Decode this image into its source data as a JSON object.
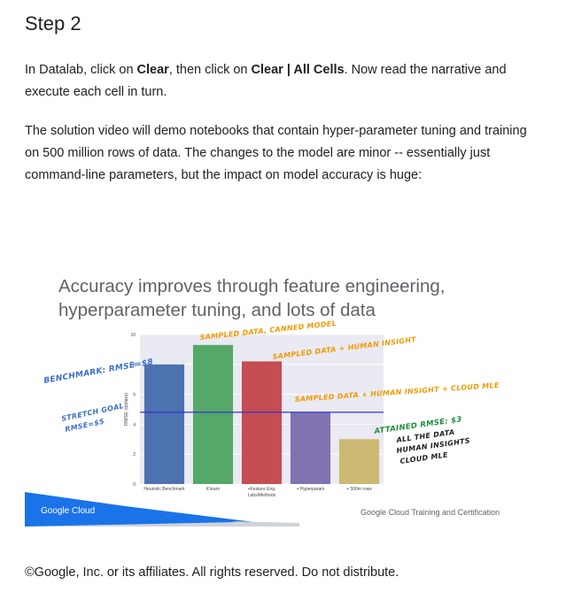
{
  "heading": "Step 2",
  "paragraph1": {
    "t1": "In Datalab, click on ",
    "b1": "Clear",
    "t2": ", then click on ",
    "b2": "Clear | All Cells",
    "t3": ". Now read the narrative and execute each cell in turn."
  },
  "paragraph2": "The solution video will demo notebooks that contain hyper-parameter tuning and training on 500 million rows of data. The changes to the model are minor -- essentially just command-line parameters, but the impact on model accuracy is huge:",
  "slide": {
    "title": "Accuracy improves through feature engineering, hyperparameter tuning, and lots of data",
    "brand": "Google Cloud",
    "certification": "Google Cloud Training and Certification"
  },
  "chart_data": {
    "type": "bar",
    "title": "",
    "ylabel": "RMSE (dollars)",
    "ylim": [
      0,
      10
    ],
    "yticks": [
      "0",
      "2",
      "4",
      "6",
      "8",
      "10"
    ],
    "categories": [
      "Heuristic Benchmark",
      "tf.learn",
      "+Feature Eng. Labs/Methods",
      "+ Hyperparam",
      "+ 500m rows"
    ],
    "values": [
      8.0,
      9.3,
      8.2,
      4.8,
      3.0
    ],
    "colors": [
      "#4c72b0",
      "#55a868",
      "#c44e52",
      "#8172b2",
      "#ccb974"
    ],
    "reference_line": 4.8,
    "reference_color": "#3333cc",
    "annotations": {
      "benchmark": "BENCHMARK: RMSE=$8",
      "stretch_line1": "STRETCH GOAL",
      "stretch_line2": "RMSE=$5",
      "sampled_canned": "SAMPLED DATA, CANNED MODEL",
      "sampled_human": "SAMPLED DATA + HUMAN INSIGHT",
      "sampled_human_cloud": "SAMPLED DATA + HUMAN INSIGHT + CLOUD MLE",
      "attained1": "ATTAINED RMSE: $3",
      "attained2": "ALL THE DATA",
      "attained3": "HUMAN INSIGHTS",
      "attained4": "CLOUD MLE"
    }
  },
  "footer": "©Google, Inc. or its affiliates. All rights reserved. Do not distribute."
}
